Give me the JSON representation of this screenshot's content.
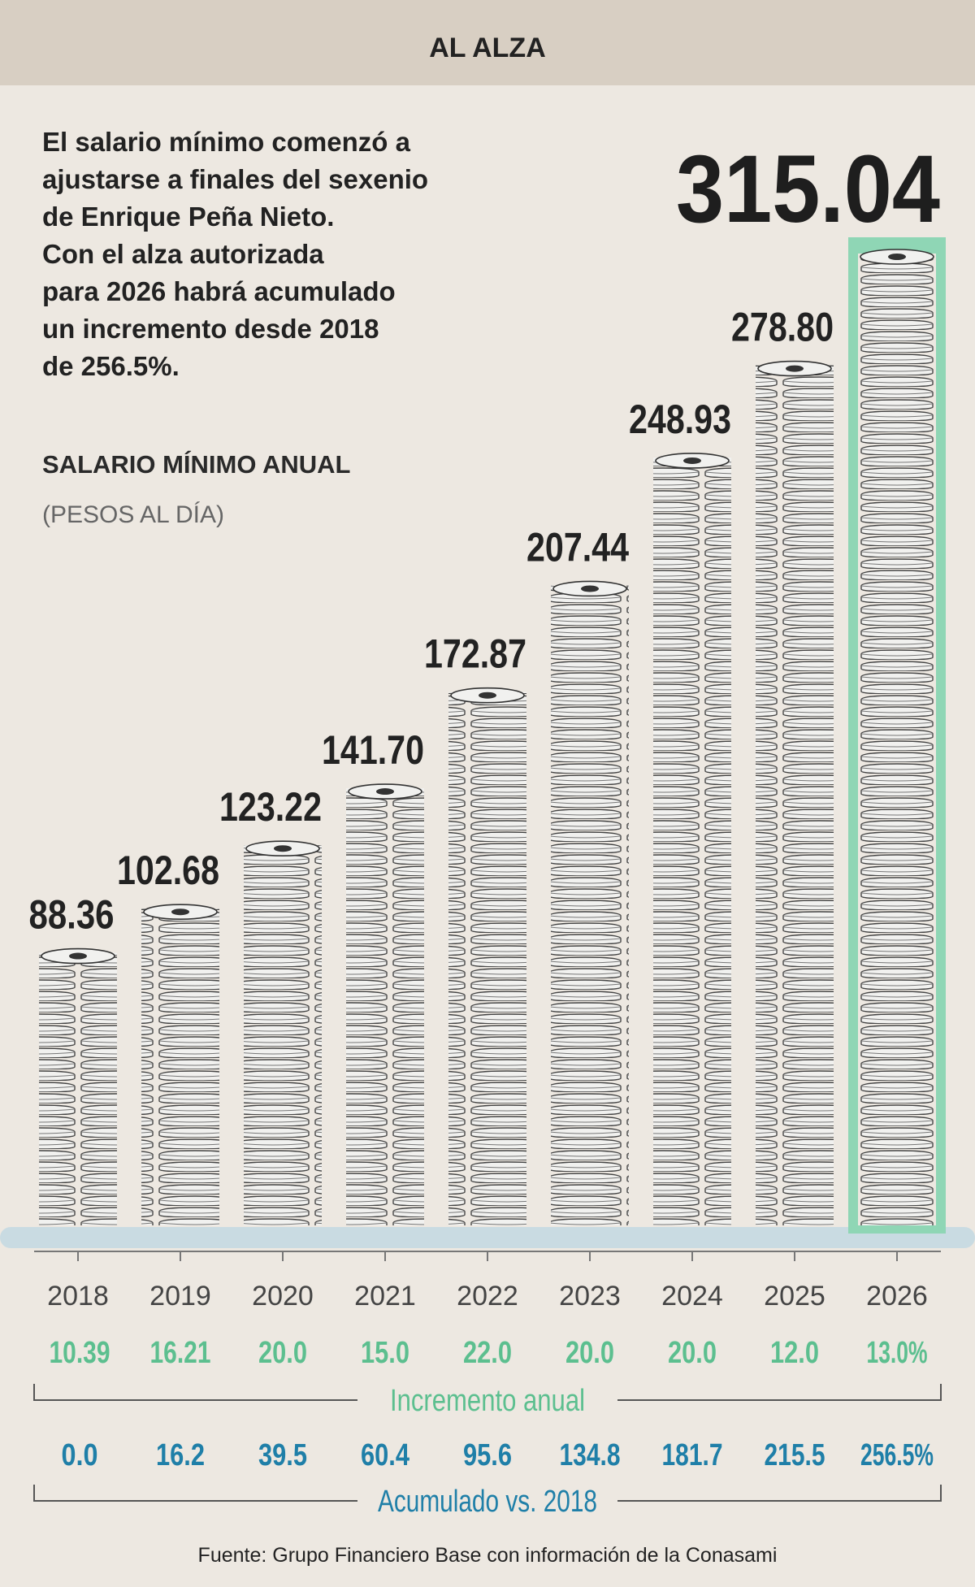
{
  "chart_data": {
    "type": "bar",
    "title": "AL ALZA",
    "description": [
      "El salario mínimo comenzó a",
      "ajustarse a finales del sexenio",
      "de Enrique Peña Nieto.",
      "Con el alza autorizada",
      "para 2026 habrá acumulado",
      "un incremento desde 2018",
      "de 256.5%."
    ],
    "subtitle": "SALARIO MÍNIMO ANUAL",
    "unit": "(PESOS AL DÍA)",
    "categories": [
      "2018",
      "2019",
      "2020",
      "2021",
      "2022",
      "2023",
      "2024",
      "2025",
      "2026"
    ],
    "values": [
      88.36,
      102.68,
      123.22,
      141.7,
      172.87,
      207.44,
      248.93,
      278.8,
      315.04
    ],
    "value_labels": [
      "88.36",
      "102.68",
      "123.22",
      "141.70",
      "172.87",
      "207.44",
      "248.93",
      "278.80",
      "315.04"
    ],
    "color": "#f1f1ef",
    "annual_increase": {
      "label": "Incremento anual",
      "color": "#5cbf8f",
      "values": [
        10.39,
        16.21,
        20,
        15,
        22,
        20,
        20,
        12,
        13
      ],
      "value_labels": [
        "10.39",
        "16.21",
        "20.0",
        "15.0",
        "22.0",
        "20.0",
        "20.0",
        "12.0",
        "13.0%"
      ]
    },
    "accumulated": {
      "label": "Acumulado vs. 2018",
      "color": "#1f7fa8",
      "values": [
        0,
        16.2,
        39.5,
        60.4,
        95.6,
        134.8,
        181.7,
        215.5,
        256.5
      ],
      "value_labels": [
        "0.0",
        "16.2",
        "39.5",
        "60.4",
        "95.6",
        "134.8",
        "181.7",
        "215.5",
        "256.5%"
      ]
    },
    "source": "Fuente: Grupo Financiero Base con información de la Conasami"
  }
}
